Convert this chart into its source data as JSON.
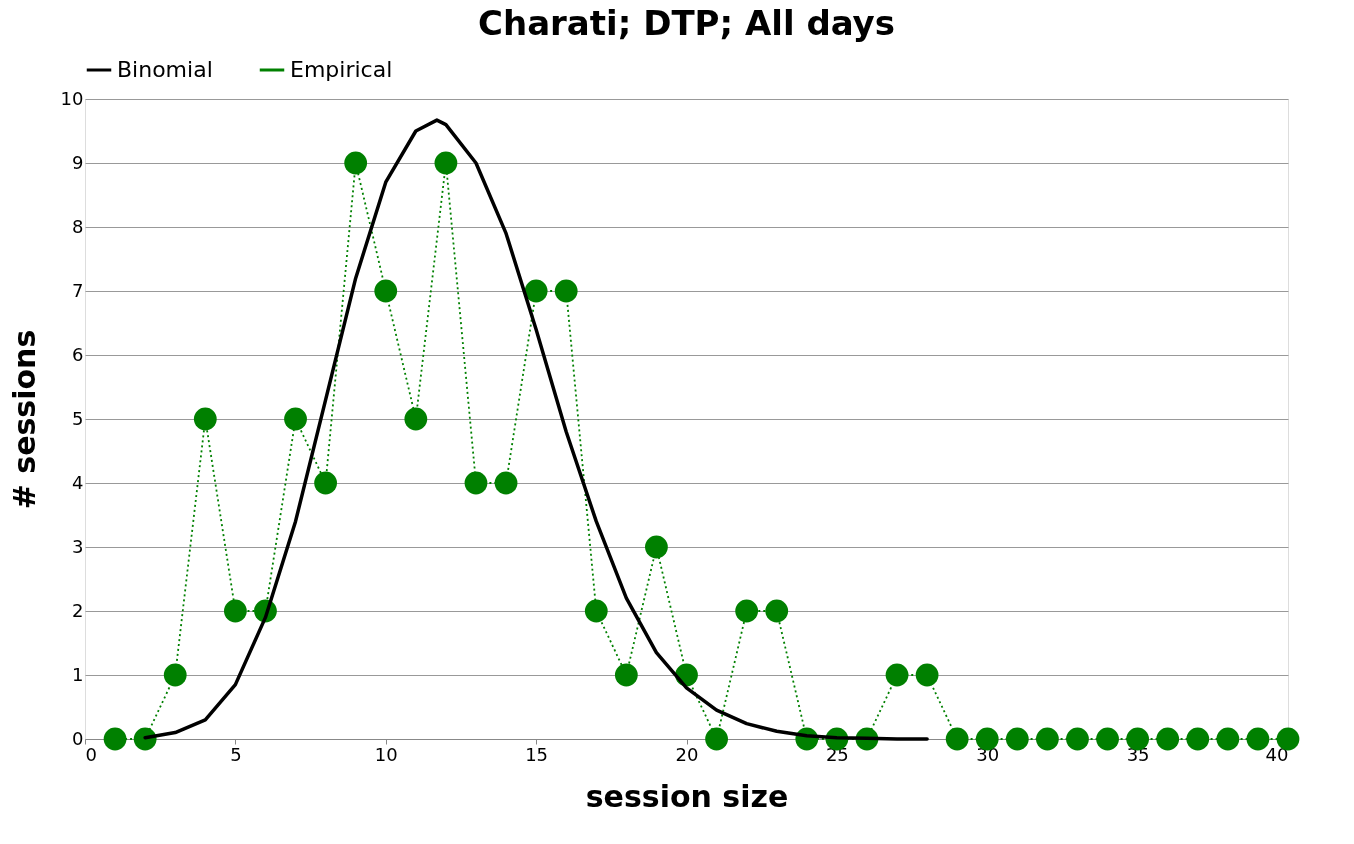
{
  "chart_data": {
    "type": "line",
    "title": "Charati; DTP; All days",
    "xlabel": "session size",
    "ylabel": "# sessions",
    "xlim": [
      0,
      40
    ],
    "xticks": [
      0,
      5,
      10,
      15,
      20,
      25,
      30,
      35,
      40
    ],
    "ylim": [
      0,
      10
    ],
    "yticks": [
      0,
      1,
      2,
      3,
      4,
      5,
      6,
      7,
      8,
      9,
      10
    ],
    "grid": "y",
    "legend": "top",
    "series": [
      {
        "name": "Binomial",
        "color": "#000000",
        "marker": "none",
        "line_style": "solid",
        "x": [
          2,
          3,
          4,
          5,
          6,
          7,
          8,
          9,
          10,
          11,
          11.7,
          12,
          13,
          14,
          15,
          16,
          17,
          18,
          19,
          20,
          21,
          22,
          23,
          24,
          25,
          26,
          27,
          28
        ],
        "values": [
          0.02,
          0.1,
          0.3,
          0.85,
          1.9,
          3.4,
          5.3,
          7.2,
          8.7,
          9.5,
          9.67,
          9.6,
          9.0,
          7.9,
          6.4,
          4.8,
          3.4,
          2.2,
          1.35,
          0.8,
          0.45,
          0.24,
          0.12,
          0.05,
          0.02,
          0.01,
          0,
          0
        ]
      },
      {
        "name": "Empirical",
        "color": "#008000",
        "marker": "circle",
        "line_style": "dotted",
        "x": [
          1,
          2,
          3,
          4,
          5,
          6,
          7,
          8,
          9,
          10,
          11,
          12,
          13,
          14,
          15,
          16,
          17,
          18,
          19,
          20,
          21,
          22,
          23,
          24,
          25,
          26,
          27,
          28,
          29,
          30,
          31,
          32,
          33,
          34,
          35,
          36,
          37,
          38,
          39,
          40
        ],
        "values": [
          0,
          0,
          1,
          5,
          2,
          2,
          5,
          4,
          9,
          7,
          5,
          9,
          4,
          4,
          7,
          7,
          2,
          1,
          3,
          1,
          0,
          2,
          2,
          0,
          0,
          0,
          1,
          1,
          0,
          0,
          0,
          0,
          0,
          0,
          0,
          0,
          0,
          0,
          0,
          0
        ]
      }
    ]
  }
}
